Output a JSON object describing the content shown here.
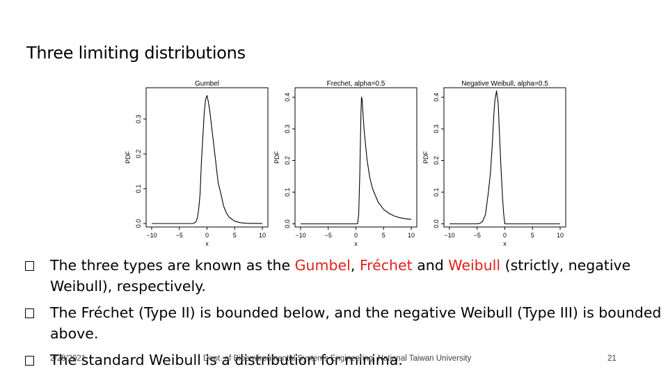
{
  "slide": {
    "title": "Three limiting distributions"
  },
  "chart_data": [
    {
      "type": "line",
      "title": "Gumbel",
      "xlabel": "x",
      "ylabel": "PDF",
      "xlim": [
        -11,
        11
      ],
      "ylim": [
        -0.01,
        0.39
      ],
      "xticks": [
        -10,
        -5,
        0,
        5,
        10
      ],
      "yticks": [
        0.0,
        0.1,
        0.2,
        0.3
      ],
      "xtick_labels": [
        "−10",
        "−5",
        "0",
        "5",
        "10"
      ],
      "ytick_labels": [
        "0.0",
        "0.1",
        "0.2",
        "0.3"
      ],
      "series": [
        {
          "name": "Gumbel",
          "x": [
            -10,
            -5,
            -4,
            -3,
            -2.5,
            -2,
            -1.75,
            -1.5,
            -1.25,
            -1,
            -0.75,
            -0.5,
            -0.25,
            0,
            0.25,
            0.5,
            0.75,
            1,
            1.5,
            2,
            2.5,
            3,
            3.5,
            4,
            5,
            6,
            7,
            8,
            10
          ],
          "y": [
            0,
            0,
            0,
            0,
            0.0001,
            0.0045,
            0.0159,
            0.0416,
            0.0866,
            0.1793,
            0.2471,
            0.3189,
            0.3565,
            0.3679,
            0.3486,
            0.3229,
            0.2893,
            0.2546,
            0.1886,
            0.1182,
            0.0861,
            0.0498,
            0.0303,
            0.018,
            0.0066,
            0.0025,
            0.0009,
            0.0003,
            0.0001
          ]
        }
      ]
    },
    {
      "type": "line",
      "title": "Frechet, alpha=0.5",
      "xlabel": "x",
      "ylabel": "PDF",
      "xlim": [
        -11,
        11
      ],
      "ylim": [
        -0.01,
        0.43
      ],
      "xticks": [
        -10,
        -5,
        0,
        5,
        10
      ],
      "yticks": [
        0.0,
        0.1,
        0.2,
        0.3,
        0.4
      ],
      "xtick_labels": [
        "−10",
        "−5",
        "0",
        "5",
        "10"
      ],
      "ytick_labels": [
        "0.0",
        "0.1",
        "0.2",
        "0.3",
        "0.4"
      ],
      "series": [
        {
          "name": "Frechet",
          "x": [
            -10,
            -2,
            -1,
            0,
            0.3,
            0.5,
            0.7,
            0.9,
            1.0,
            1.1,
            1.3,
            1.5,
            2,
            2.5,
            3,
            4,
            5,
            6,
            7,
            8,
            9,
            10
          ],
          "y": [
            0,
            0,
            0,
            0,
            0.0003,
            0.0293,
            0.1589,
            0.3458,
            0.4,
            0.3947,
            0.3445,
            0.2936,
            0.204,
            0.1463,
            0.111,
            0.0691,
            0.0457,
            0.033,
            0.024,
            0.019,
            0.016,
            0.014
          ]
        }
      ]
    },
    {
      "type": "line",
      "title": "Negative Weibull, alpha=0.5",
      "xlabel": "x",
      "ylabel": "PDF",
      "xlim": [
        -11,
        11
      ],
      "ylim": [
        -0.01,
        0.43
      ],
      "xticks": [
        -10,
        -5,
        0,
        5,
        10
      ],
      "yticks": [
        0.0,
        0.1,
        0.2,
        0.3,
        0.4
      ],
      "xtick_labels": [
        "−10",
        "−5",
        "0",
        "5",
        "10"
      ],
      "ytick_labels": [
        "0.0",
        "0.1",
        "0.2",
        "0.3",
        "0.4"
      ],
      "series": [
        {
          "name": "Negative Weibull",
          "x": [
            -10,
            -6,
            -5,
            -4.5,
            -4,
            -3.5,
            -3,
            -2.6,
            -2.3,
            -2.0,
            -1.8,
            -1.5,
            -1.2,
            -1.0,
            -0.7,
            -0.4,
            -0.2,
            0,
            10
          ],
          "y": [
            0,
            0,
            0.0004,
            0.0014,
            0.008,
            0.03,
            0.095,
            0.16,
            0.24,
            0.34,
            0.39,
            0.42,
            0.38,
            0.3,
            0.18,
            0.08,
            0.03,
            0,
            0
          ]
        }
      ]
    }
  ],
  "bullets": [
    {
      "t1": "The three types are known as the ",
      "gumbel": "Gumbel",
      "sep1": ", ",
      "frechet": "Fréchet",
      "sep2": " and ",
      "weibull": "Weibull",
      "t2": " (strictly, negative Weibull), respectively."
    },
    {
      "text": "The Fréchet (Type II) is bounded below, and the negative Weibull (Type III) is bounded above."
    },
    {
      "text": "The standard Weibull is a distribution for minima."
    }
  ],
  "footer": {
    "date": "2/28/2021",
    "department": "Dept. of Bioenvironmental Systems Engineering, National Taiwan University",
    "page": "21"
  }
}
